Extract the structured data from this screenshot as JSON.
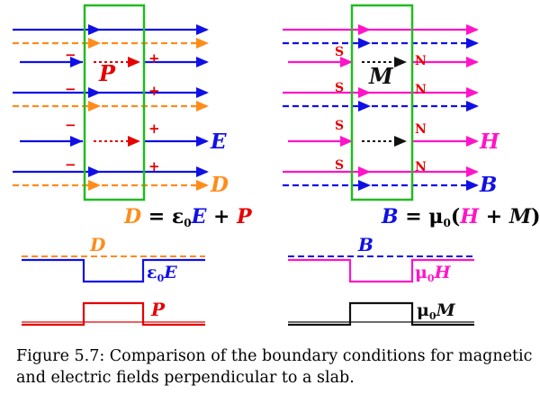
{
  "colors": {
    "E": "#1010e6",
    "D": "#ff8c1a",
    "P": "#e60000",
    "H": "#ff14c8",
    "M": "#111111",
    "slab": "#22bb22"
  },
  "left": {
    "P_label": "P",
    "E_label": "E",
    "D_label": "D",
    "plus": "+",
    "minus": "−",
    "eq_D": "D",
    "eq_mid": " = ε",
    "eq_sub": "0",
    "eq_E": "E",
    "eq_plus": " + ",
    "eq_P": "P",
    "g_D": "D",
    "g_eps": "ε",
    "g_sub": "0",
    "g_E": "E",
    "g_P": "P"
  },
  "right": {
    "M_label": "M",
    "H_label": "H",
    "B_label": "B",
    "S": "S",
    "N": "N",
    "eq_B": "B",
    "eq_mid": " = μ",
    "eq_sub": "0",
    "eq_open": "(",
    "eq_H": "H",
    "eq_plus": " + ",
    "eq_M": "M",
    "eq_close": ")",
    "g_B": "B",
    "g_mu1": "μ",
    "g_sub1": "0",
    "g_H": "H",
    "g_mu2": "μ",
    "g_sub2": "0",
    "g_M": "M"
  },
  "caption": {
    "line1": "Figure 5.7:  Comparison of the boundary conditions for magnetic",
    "line2": "and electric fields perpendicular to a slab."
  }
}
